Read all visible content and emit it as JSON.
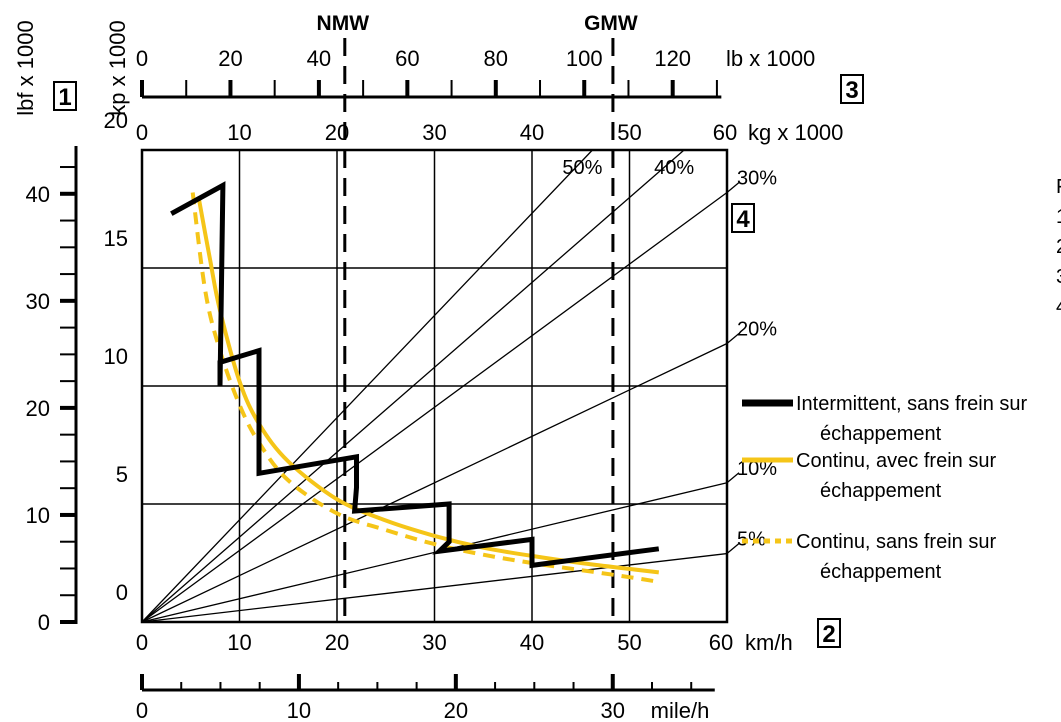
{
  "colors": {
    "axis": "#000000",
    "intermittent": "#000000",
    "continuous": "#F5C518",
    "background": "#ffffff"
  },
  "boxes": {
    "b1": "1",
    "b2": "2",
    "b3": "3",
    "b4": "4"
  },
  "right_column_partial": [
    "F",
    "1",
    "2",
    "3",
    "4"
  ],
  "chart_data": {
    "type": "line",
    "axes": {
      "speed_kmh": {
        "label": "km/h",
        "ticks": [
          "0",
          "10",
          "20",
          "30",
          "40",
          "50",
          "60"
        ],
        "range": [
          0,
          60
        ]
      },
      "speed_mph": {
        "label": "mile/h",
        "ticks": [
          "0",
          "10",
          "20",
          "30"
        ],
        "range": [
          0,
          37.28
        ]
      },
      "force_kp": {
        "label": "kp x 1000",
        "ticks": [
          "0",
          "5",
          "10",
          "15",
          "20"
        ],
        "range": [
          0,
          20
        ]
      },
      "force_lbf": {
        "label": "lbf x 1000",
        "ticks": [
          "0",
          "10",
          "20",
          "30",
          "40"
        ],
        "range": [
          0,
          44.09
        ]
      },
      "weight_kg": {
        "label": "kg x 1000",
        "ticks": [
          "0",
          "10",
          "20",
          "30",
          "40",
          "50",
          "60"
        ],
        "range": [
          0,
          60
        ]
      },
      "weight_lb": {
        "label": "lb x 1000",
        "ticks": [
          "0",
          "20",
          "40",
          "60",
          "80",
          "100",
          "120"
        ],
        "range": [
          0,
          132.28
        ]
      }
    },
    "markers": [
      {
        "label": "NMW",
        "weight_kg1000": 20.8
      },
      {
        "label": "GMW",
        "weight_kg1000": 48.3
      }
    ],
    "gradients": [
      {
        "label": "50%",
        "end": [
          46.2,
          20
        ]
      },
      {
        "label": "40%",
        "end": [
          55.6,
          20
        ]
      },
      {
        "label": "30%",
        "end": [
          60,
          18.2
        ]
      },
      {
        "label": "20%",
        "end": [
          60,
          11.8
        ]
      },
      {
        "label": "10%",
        "end": [
          60,
          5.9
        ]
      },
      {
        "label": "5%",
        "end": [
          60,
          2.9
        ]
      }
    ],
    "grid": true,
    "legend": {
      "position": "right",
      "entries": [
        {
          "label_line1": "Intermittent, sans frein sur",
          "label_line2": "échappement",
          "style": "solid-black"
        },
        {
          "label_line1": "Continu, avec frein sur",
          "label_line2": "échappement",
          "style": "solid-yellow"
        },
        {
          "label_line1": "Continu, sans frein sur",
          "label_line2": "échappement",
          "style": "dashed-yellow"
        }
      ]
    },
    "series": [
      {
        "name": "Intermittent, sans frein sur échappement",
        "x": [
          3,
          8.3,
          8.3,
          8.0,
          8.0,
          12.0,
          12.0,
          22.0,
          22.0,
          21.8,
          21.8,
          31.5,
          31.5,
          30.5,
          30.5,
          40.0,
          40.0,
          40.0,
          53.0
        ],
        "y": [
          17.3,
          18.5,
          18.5,
          10.0,
          11.0,
          11.5,
          6.3,
          7.0,
          5.7,
          4.7,
          4.7,
          5.0,
          3.4,
          3.0,
          3.0,
          3.5,
          2.8,
          2.4,
          3.1
        ]
      },
      {
        "name": "Continu, avec frein sur échappement",
        "x": [
          5.8,
          7,
          8,
          10,
          12,
          15,
          20,
          25,
          30,
          35,
          40,
          45,
          50,
          53
        ],
        "y": [
          18.0,
          15.3,
          13.2,
          10.2,
          8.4,
          6.8,
          5.2,
          4.3,
          3.65,
          3.15,
          2.8,
          2.5,
          2.25,
          2.1
        ]
      },
      {
        "name": "Continu, sans frein sur échappement",
        "x": [
          5.2,
          6.5,
          8,
          10,
          12,
          15,
          20,
          25,
          30,
          35,
          40,
          45,
          50,
          53
        ],
        "y": [
          18.2,
          14.0,
          11.5,
          9.2,
          7.6,
          6.0,
          4.6,
          3.9,
          3.3,
          2.85,
          2.5,
          2.2,
          1.9,
          1.7
        ]
      }
    ]
  }
}
